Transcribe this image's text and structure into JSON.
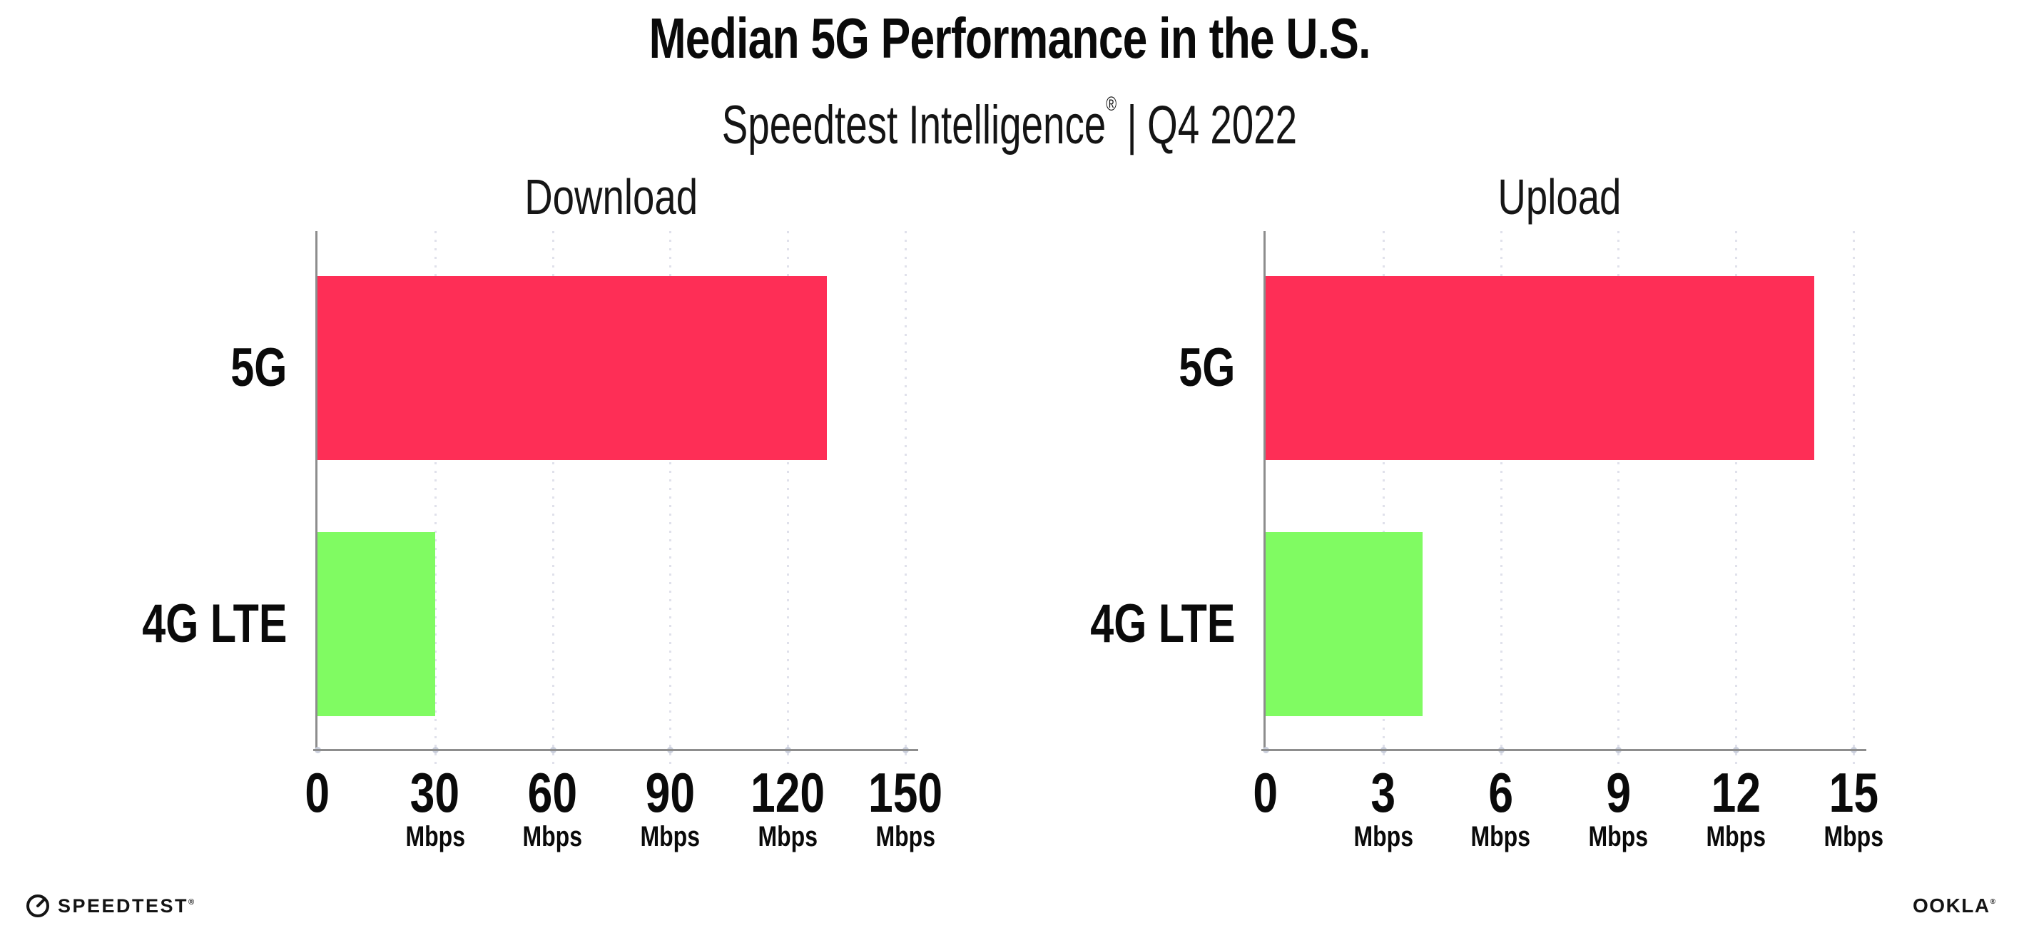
{
  "header": {
    "title": "Median 5G Performance in the U.S.",
    "subtitle": {
      "brand": "Speedtest Intelligence",
      "registered_mark": "®",
      "separator": "|",
      "period": "Q4 2022"
    }
  },
  "footer": {
    "speedtest": {
      "label": "SPEEDTEST",
      "registered_mark": "®"
    },
    "ookla": {
      "label": "OOKLA",
      "registered_mark": "®"
    }
  },
  "colors": {
    "bar_5g": "#fe2e56",
    "bar_4g_lte": "#80fb62",
    "axis": "#8d8d8d",
    "gridline": "#e0e1eb",
    "text": "#0a0a0a",
    "background": "#ffffff"
  },
  "chart_data": [
    {
      "type": "bar",
      "orientation": "horizontal",
      "title": "Download",
      "categories": [
        "5G",
        "4G LTE"
      ],
      "values": [
        130,
        30
      ],
      "unit": "Mbps",
      "xlim": [
        0,
        150
      ],
      "xticks": [
        0,
        30,
        60,
        90,
        120,
        150
      ],
      "xtick_unit_suffix": "Mbps",
      "bar_colors": [
        "#fe2e56",
        "#80fb62"
      ],
      "grid": "dotted vertical gridline at every x tick",
      "legend": false
    },
    {
      "type": "bar",
      "orientation": "horizontal",
      "title": "Upload",
      "categories": [
        "5G",
        "4G LTE"
      ],
      "values": [
        14,
        4
      ],
      "unit": "Mbps",
      "xlim": [
        0,
        15
      ],
      "xticks": [
        0,
        3,
        6,
        9,
        12,
        15
      ],
      "xtick_unit_suffix": "Mbps",
      "bar_colors": [
        "#fe2e56",
        "#80fb62"
      ],
      "grid": "dotted vertical gridline at every x tick",
      "legend": false
    }
  ]
}
